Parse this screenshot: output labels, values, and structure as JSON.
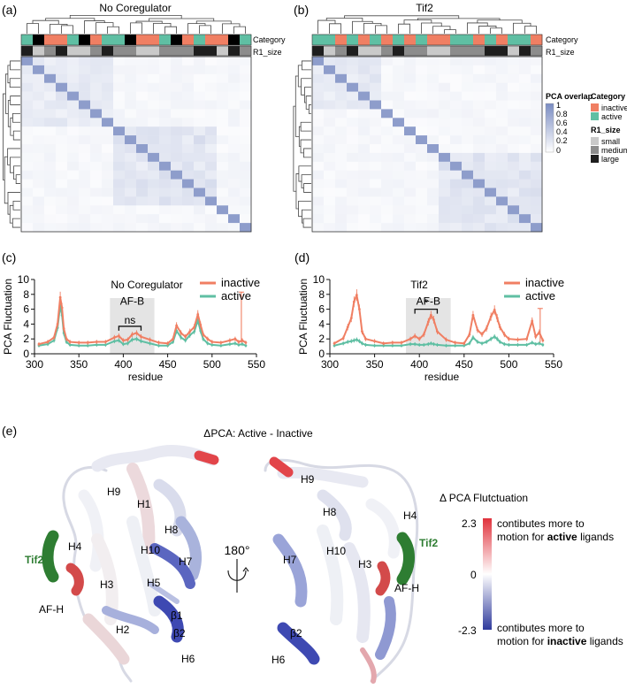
{
  "panels": {
    "a": {
      "label": "(a)",
      "title": "No Coregulator"
    },
    "b": {
      "label": "(b)",
      "title": "Tif2"
    },
    "c": {
      "label": "(c)",
      "title": "No Coregulator",
      "region_label": "AF-B",
      "sig": "ns"
    },
    "d": {
      "label": "(d)",
      "title": "Tif2",
      "region_label": "AF-B",
      "sig": "*"
    },
    "e": {
      "label": "(e)",
      "title": "ΔPCA:  Active - Inactive"
    }
  },
  "heatmap": {
    "row_labels": {
      "category": "Category",
      "r1": "R1_size"
    },
    "legend": {
      "overlap_title": "PCA overlap",
      "overlap_ticks": [
        "1",
        "0.8",
        "0.6",
        "0.4",
        "0.2",
        "0"
      ],
      "category_title": "Category",
      "category_items": [
        {
          "label": "inactive",
          "color": "#f07f63"
        },
        {
          "label": "active",
          "color": "#5fbfa3"
        }
      ],
      "r1_title": "R1_size",
      "r1_items": [
        {
          "label": "small",
          "color": "#c9c9c9"
        },
        {
          "label": "medium",
          "color": "#8c8c8c"
        },
        {
          "label": "large",
          "color": "#1e1e1e"
        }
      ]
    },
    "a_category": "ACIIACIAACIIACIAIICA",
    "a_r1": "LSMLSSMLMMSSMMMLLSLM",
    "b_category": "AAIAIAIAIAIIAAIAIAAI",
    "b_r1": "LSMLSSMLMMSSMMMLLSLM"
  },
  "chart_data": [
    {
      "type": "line",
      "title": "No Coregulator",
      "xlabel": "residue",
      "ylabel": "PCA Fluctuation",
      "xlim": [
        300,
        550
      ],
      "ylim": [
        0,
        10
      ],
      "xticks": [
        "300",
        "350",
        "400",
        "450",
        "500",
        "550"
      ],
      "yticks": [
        "0",
        "2",
        "4",
        "6",
        "8",
        "10"
      ],
      "shaded_region": [
        385,
        435
      ],
      "series": [
        {
          "name": "inactive",
          "color": "#f07f63",
          "x": [
            305,
            315,
            322,
            326,
            329,
            331,
            333,
            336,
            340,
            350,
            360,
            370,
            380,
            390,
            395,
            400,
            405,
            410,
            415,
            420,
            430,
            440,
            450,
            456,
            460,
            465,
            470,
            475,
            480,
            484,
            487,
            490,
            495,
            500,
            510,
            520,
            526,
            530,
            534,
            538
          ],
          "y": [
            1.3,
            1.6,
            2.2,
            4.0,
            7.6,
            6.2,
            3.4,
            2.0,
            1.6,
            1.5,
            1.5,
            1.6,
            1.6,
            2.2,
            2.4,
            1.8,
            1.9,
            2.6,
            2.8,
            2.3,
            1.9,
            1.5,
            1.4,
            2.0,
            3.8,
            2.8,
            2.3,
            3.0,
            3.6,
            5.3,
            3.9,
            2.6,
            2.0,
            1.6,
            1.5,
            1.8,
            2.0,
            1.6,
            1.8,
            1.5
          ]
        },
        {
          "name": "active",
          "color": "#5fbfa3",
          "x": [
            305,
            315,
            322,
            326,
            329,
            331,
            333,
            336,
            340,
            350,
            360,
            370,
            380,
            390,
            395,
            400,
            405,
            410,
            415,
            420,
            430,
            440,
            450,
            456,
            460,
            465,
            470,
            475,
            480,
            484,
            487,
            490,
            495,
            500,
            510,
            520,
            526,
            530,
            534,
            538
          ],
          "y": [
            1.1,
            1.3,
            1.8,
            3.5,
            6.5,
            5.2,
            2.8,
            1.6,
            1.2,
            1.1,
            1.1,
            1.2,
            1.2,
            1.7,
            1.8,
            1.3,
            1.4,
            1.9,
            2.0,
            1.7,
            1.4,
            1.1,
            1.1,
            1.6,
            3.1,
            2.2,
            1.8,
            2.5,
            3.0,
            4.5,
            3.1,
            2.0,
            1.4,
            1.2,
            1.1,
            1.3,
            1.4,
            1.2,
            1.3,
            1.1
          ]
        }
      ],
      "spikes": [
        [
          533,
          8.3
        ]
      ]
    },
    {
      "type": "line",
      "title": "Tif2",
      "xlabel": "residue",
      "ylabel": "PCA Fluctuation",
      "xlim": [
        300,
        550
      ],
      "ylim": [
        0,
        10
      ],
      "xticks": [
        "300",
        "350",
        "400",
        "450",
        "500",
        "550"
      ],
      "yticks": [
        "0",
        "2",
        "4",
        "6",
        "8",
        "10"
      ],
      "shaded_region": [
        385,
        435
      ],
      "series": [
        {
          "name": "inactive",
          "color": "#f07f63",
          "x": [
            305,
            315,
            320,
            324,
            327,
            330,
            333,
            336,
            340,
            350,
            360,
            370,
            380,
            390,
            395,
            400,
            405,
            410,
            413,
            416,
            420,
            430,
            440,
            450,
            456,
            460,
            465,
            470,
            475,
            480,
            484,
            487,
            490,
            495,
            500,
            510,
            520,
            526,
            530,
            534,
            538
          ],
          "y": [
            1.4,
            2.1,
            3.6,
            4.8,
            7.0,
            7.9,
            6.0,
            3.0,
            2.0,
            1.7,
            1.4,
            1.5,
            1.5,
            2.0,
            2.4,
            2.0,
            2.6,
            4.3,
            5.2,
            4.6,
            3.0,
            1.9,
            1.5,
            1.4,
            2.6,
            5.2,
            3.2,
            2.6,
            3.4,
            5.0,
            5.9,
            4.8,
            3.6,
            2.6,
            2.0,
            1.9,
            2.0,
            4.4,
            2.3,
            2.9,
            1.8
          ]
        },
        {
          "name": "active",
          "color": "#5fbfa3",
          "x": [
            305,
            315,
            320,
            324,
            327,
            330,
            333,
            336,
            340,
            350,
            360,
            370,
            380,
            390,
            395,
            400,
            405,
            410,
            413,
            416,
            420,
            430,
            440,
            450,
            456,
            460,
            465,
            470,
            475,
            480,
            484,
            487,
            490,
            495,
            500,
            510,
            520,
            526,
            530,
            534,
            538
          ],
          "y": [
            1.1,
            1.4,
            1.6,
            1.7,
            1.8,
            1.9,
            1.7,
            1.4,
            1.2,
            1.1,
            1.1,
            1.1,
            1.1,
            1.3,
            1.3,
            1.2,
            1.2,
            1.3,
            1.4,
            1.3,
            1.2,
            1.1,
            1.1,
            1.1,
            1.4,
            2.2,
            1.6,
            1.4,
            1.6,
            2.0,
            2.3,
            2.0,
            1.6,
            1.3,
            1.2,
            1.2,
            1.2,
            1.5,
            1.3,
            1.4,
            1.2
          ]
        }
      ],
      "spikes": [
        [
          535,
          6.1
        ]
      ]
    }
  ],
  "structure": {
    "left_labels": [
      "H9",
      "H1",
      "H8",
      "H4",
      "H10",
      "H7",
      "H3",
      "H5",
      "AF-H",
      "β1",
      "β2",
      "H2",
      "H6"
    ],
    "right_labels": [
      "H9",
      "H8",
      "H4",
      "H7",
      "H10",
      "H3",
      "AF-H",
      "β2",
      "H6"
    ],
    "tif2": "Tif2",
    "rotation": "180°",
    "colorbar_title": "Δ PCA Flutctuation",
    "colorbar_max": "2.3",
    "colorbar_mid": "0",
    "colorbar_min": "-2.3",
    "active_text_1": "contibutes more to",
    "active_text_2_pre": "motion for ",
    "active_text_2_bold": "active",
    "active_text_2_post": " ligands",
    "inactive_text_1": "contibutes more to",
    "inactive_text_2_pre": "motion for ",
    "inactive_text_2_bold": "inactive",
    "inactive_text_2_post": " ligands"
  }
}
